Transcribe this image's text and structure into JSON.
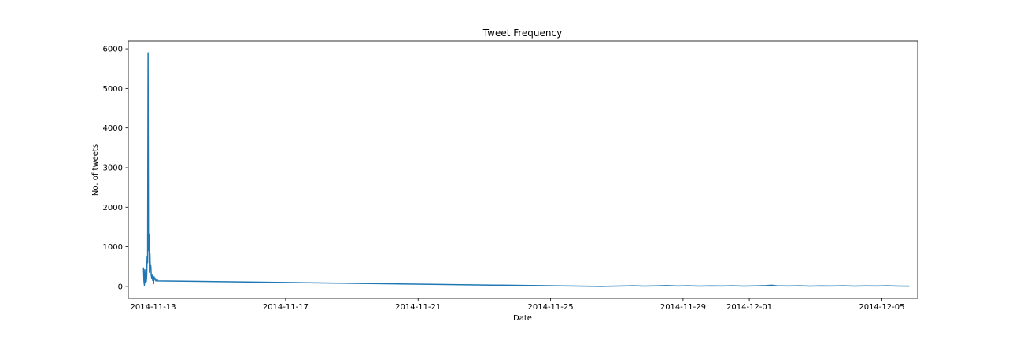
{
  "chart_data": {
    "type": "line",
    "title": "Tweet Frequency",
    "xlabel": "Date",
    "ylabel": "No. of tweets",
    "x_axis_type": "date",
    "xlim": [
      "2014-11-12 06:00",
      "2014-12-06 02:00"
    ],
    "ylim": [
      -300,
      6200
    ],
    "x_ticks": [
      "2014-11-13",
      "2014-11-17",
      "2014-11-21",
      "2014-11-25",
      "2014-11-29",
      "2014-12-01",
      "2014-12-05"
    ],
    "y_ticks": [
      0,
      1000,
      2000,
      3000,
      4000,
      5000,
      6000
    ],
    "grid": false,
    "line_color": "#1f77b4",
    "series": [
      {
        "x": [
          "2014-11-12 17:00",
          "2014-11-12 17:20",
          "2014-11-12 17:40",
          "2014-11-12 18:00",
          "2014-11-12 18:20",
          "2014-11-12 18:40",
          "2014-11-12 19:00",
          "2014-11-12 19:20",
          "2014-11-12 19:40",
          "2014-11-12 20:00",
          "2014-11-12 20:20",
          "2014-11-12 20:40",
          "2014-11-12 21:00",
          "2014-11-12 21:20",
          "2014-11-12 21:40",
          "2014-11-12 22:00",
          "2014-11-12 22:20",
          "2014-11-12 22:40",
          "2014-11-12 23:00",
          "2014-11-12 23:20",
          "2014-11-12 23:40",
          "2014-11-13 00:00",
          "2014-11-13 00:20",
          "2014-11-13 00:40",
          "2014-11-13 01:00",
          "2014-11-13 01:20",
          "2014-11-13 01:40",
          "2014-11-13 02:00",
          "2014-11-13 02:20",
          "2014-11-13 02:40",
          "2014-11-13 03:00",
          "2014-11-13 03:20",
          "2014-11-26 12:00",
          "2014-11-26 20:00",
          "2014-11-27 04:00",
          "2014-11-27 12:00",
          "2014-11-27 20:00",
          "2014-11-28 04:00",
          "2014-11-28 12:00",
          "2014-11-28 20:00",
          "2014-11-29 04:00",
          "2014-11-29 12:00",
          "2014-11-29 20:00",
          "2014-11-30 04:00",
          "2014-11-30 12:00",
          "2014-11-30 20:00",
          "2014-12-01 04:00",
          "2014-12-01 12:00",
          "2014-12-01 16:00",
          "2014-12-01 20:00",
          "2014-12-02 04:00",
          "2014-12-02 12:00",
          "2014-12-02 20:00",
          "2014-12-03 04:00",
          "2014-12-03 12:00",
          "2014-12-03 20:00",
          "2014-12-04 04:00",
          "2014-12-04 12:00",
          "2014-12-04 20:00",
          "2014-12-05 04:00",
          "2014-12-05 12:00",
          "2014-12-05 20:00"
        ],
        "y": [
          480,
          140,
          30,
          420,
          90,
          300,
          120,
          250,
          760,
          600,
          5900,
          900,
          1320,
          350,
          850,
          420,
          520,
          260,
          210,
          300,
          150,
          230,
          70,
          240,
          180,
          210,
          160,
          140,
          150,
          180,
          170,
          140,
          0,
          5,
          10,
          15,
          8,
          12,
          20,
          10,
          15,
          8,
          12,
          10,
          15,
          8,
          12,
          20,
          30,
          15,
          10,
          15,
          8,
          12,
          10,
          15,
          8,
          12,
          10,
          15,
          8,
          5
        ]
      }
    ]
  }
}
